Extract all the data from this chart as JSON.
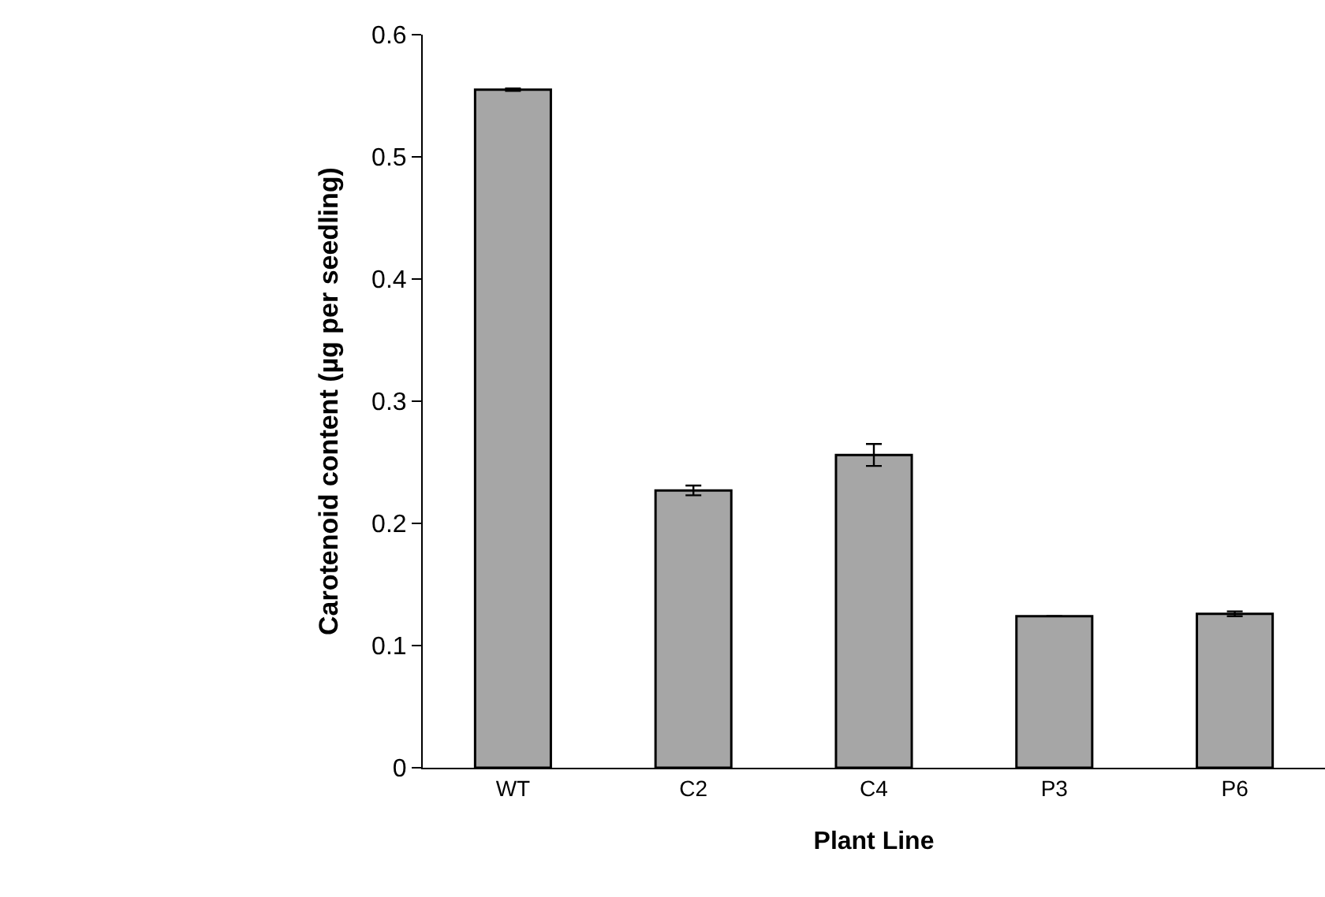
{
  "chart_data": {
    "type": "bar",
    "xlabel": "Plant Line",
    "ylabel": "Carotenoid content (µg per seedling)",
    "categories": [
      "WT",
      "C2",
      "C4",
      "P3",
      "P6"
    ],
    "values": [
      0.555,
      0.227,
      0.256,
      0.124,
      0.126
    ],
    "errors": [
      0.001,
      0.004,
      0.009,
      null,
      0.002
    ],
    "color": "#a6a6a6",
    "ylim": [
      0,
      0.6
    ],
    "yticks": [
      0,
      0.1,
      0.2,
      0.3,
      0.4,
      0.5,
      0.6
    ],
    "grid": false,
    "legend": false
  }
}
